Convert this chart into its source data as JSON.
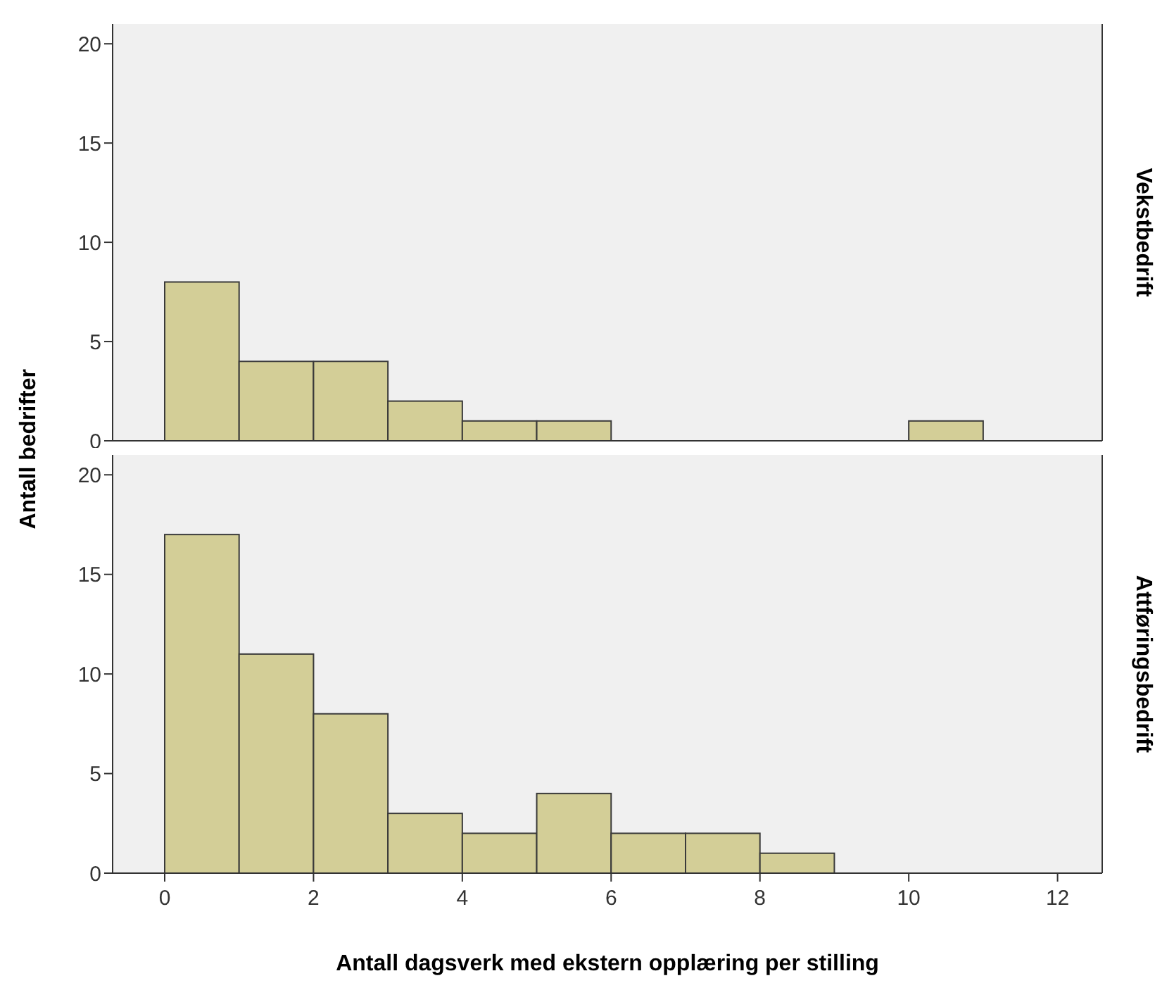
{
  "chart_data": [
    {
      "type": "histogram",
      "y2label": "Vekstbedrift",
      "ylabel": "Antall bedrifter",
      "bins": [
        0,
        1,
        2,
        3,
        4,
        5,
        6,
        7,
        8,
        9,
        10,
        11
      ],
      "values": [
        8,
        4,
        4,
        2,
        1,
        1,
        0,
        0,
        0,
        0,
        1
      ],
      "color": "#d3ce97",
      "xlim": [
        -0.7,
        12.6
      ],
      "xticks": [
        0,
        2,
        4,
        6,
        8,
        10,
        12
      ],
      "ylim": [
        0,
        21
      ],
      "yticks": [
        0,
        5,
        10,
        15,
        20
      ],
      "tick_labels": "y"
    },
    {
      "type": "histogram",
      "y2label": "Attføringsbedrift",
      "xlabel": "Antall dagsverk med ekstern opplæring per stilling",
      "bins": [
        0,
        1,
        2,
        3,
        4,
        5,
        6,
        7,
        8,
        9,
        10,
        11
      ],
      "values": [
        17,
        11,
        8,
        3,
        2,
        4,
        2,
        2,
        1,
        0,
        0
      ],
      "color": "#d3ce97",
      "xlim": [
        -0.7,
        12.6
      ],
      "xticks": [
        0,
        2,
        4,
        6,
        8,
        10,
        12
      ],
      "ylim": [
        0,
        21
      ],
      "yticks": [
        0,
        5,
        10,
        15,
        20
      ]
    }
  ]
}
